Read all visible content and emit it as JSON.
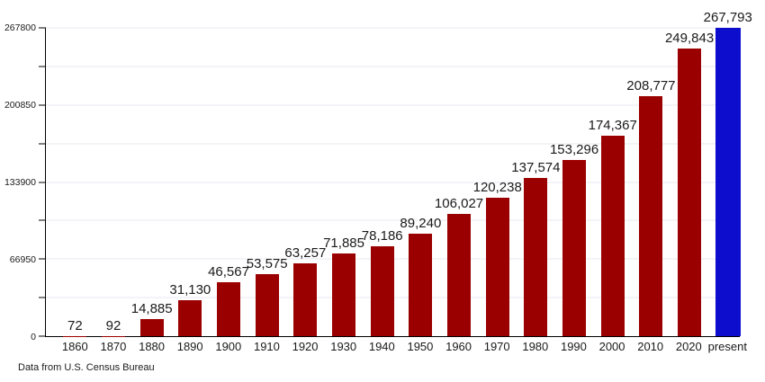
{
  "chart_data": {
    "type": "bar",
    "title": "",
    "xlabel": "",
    "ylabel": "",
    "categories": [
      "1860",
      "1870",
      "1880",
      "1890",
      "1900",
      "1910",
      "1920",
      "1930",
      "1940",
      "1950",
      "1960",
      "1970",
      "1980",
      "1990",
      "2000",
      "2010",
      "2020",
      "present"
    ],
    "values": [
      72,
      92,
      14885,
      31130,
      46567,
      53575,
      63257,
      71885,
      78186,
      89240,
      106027,
      120238,
      137574,
      153296,
      174367,
      208777,
      249843,
      267793
    ],
    "value_labels": [
      "72",
      "92",
      "14,885",
      "31,130",
      "46,567",
      "53,575",
      "63,257",
      "71,885",
      "78,186",
      "89,240",
      "106,027",
      "120,238",
      "137,574",
      "153,296",
      "174,367",
      "208,777",
      "249,843",
      "267,793"
    ],
    "ylim": [
      0,
      267800
    ],
    "yticks": [
      0,
      66950,
      133900,
      200850,
      267800
    ],
    "ytick_labels": [
      "0",
      "66950",
      "133900",
      "200850",
      "267800"
    ],
    "minor_yticks": [
      33475,
      100425,
      167375,
      234325
    ],
    "grid": true,
    "legend": "none",
    "highlight_index": 17,
    "highlight_category": "present",
    "colors": {
      "bar_default": "#9B0000",
      "bar_highlight": "#0D0DCE",
      "gridline": "#E8E8F0",
      "axis": "#000000"
    }
  },
  "footer": {
    "caption": "Data from U.S. Census Bureau"
  }
}
